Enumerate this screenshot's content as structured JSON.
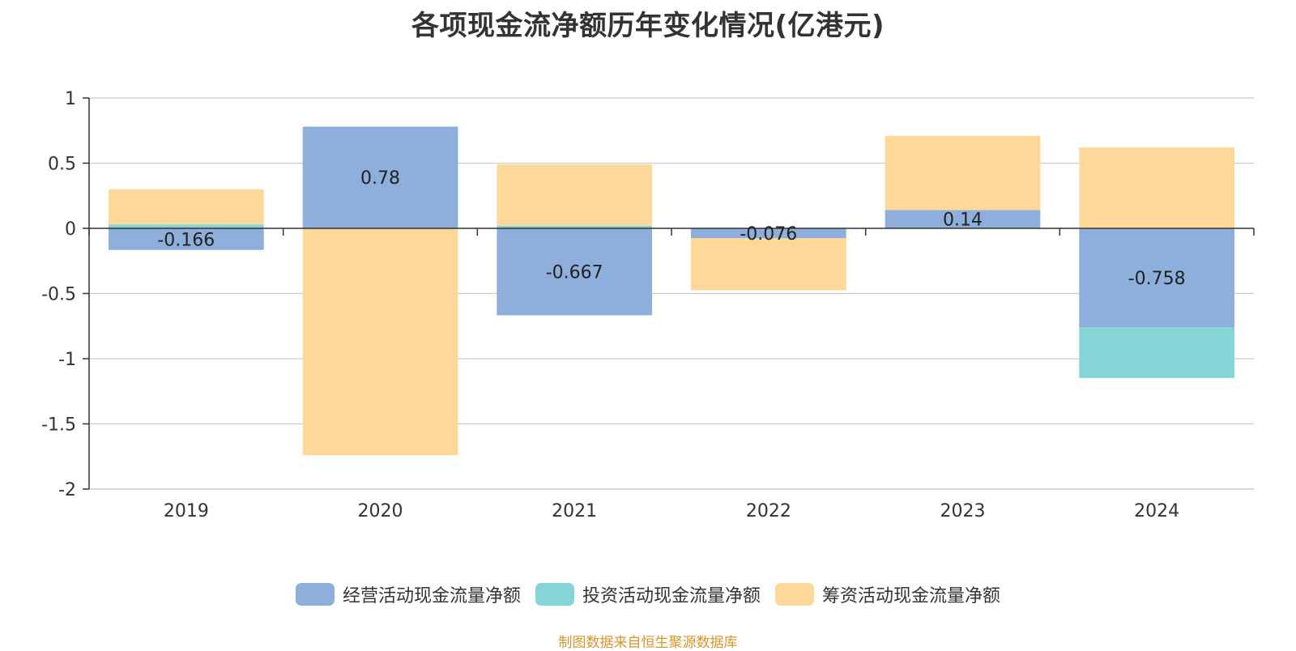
{
  "chart_data": {
    "type": "bar",
    "stacked": true,
    "title": "各项现金流净额历年变化情况(亿港元)",
    "xlabel": "",
    "ylabel": "",
    "categories": [
      "2019",
      "2020",
      "2021",
      "2022",
      "2023",
      "2024"
    ],
    "ylim": [
      -2,
      1
    ],
    "yticks": [
      1,
      0.5,
      0,
      -0.5,
      -1,
      -1.5,
      -2
    ],
    "ytick_labels": [
      "1",
      "0.5",
      "0",
      "-0.5",
      "-1",
      "-1.5",
      "-2"
    ],
    "grid": true,
    "legend_position": "bottom-center",
    "series": [
      {
        "name": "经营活动现金流量净额",
        "color": "#8eaedb",
        "values": [
          -0.166,
          0.78,
          -0.667,
          -0.076,
          0.14,
          -0.758
        ],
        "labels": [
          "-0.166",
          "0.78",
          "-0.667",
          "-0.076",
          "0.14",
          "-0.758"
        ]
      },
      {
        "name": "投资活动现金流量净额",
        "color": "#86d5d6",
        "values": [
          0.03,
          0.0,
          0.02,
          0.0,
          0.0,
          -0.39
        ]
      },
      {
        "name": "筹资活动现金流量净额",
        "color": "#fdd899",
        "values": [
          0.27,
          -1.74,
          0.47,
          -0.4,
          0.57,
          0.62
        ]
      }
    ]
  },
  "source_note": "制图数据来自恒生聚源数据库",
  "colors": {
    "axis": "#333333",
    "grid": "#cccccc",
    "source_note": "#d4962a"
  }
}
